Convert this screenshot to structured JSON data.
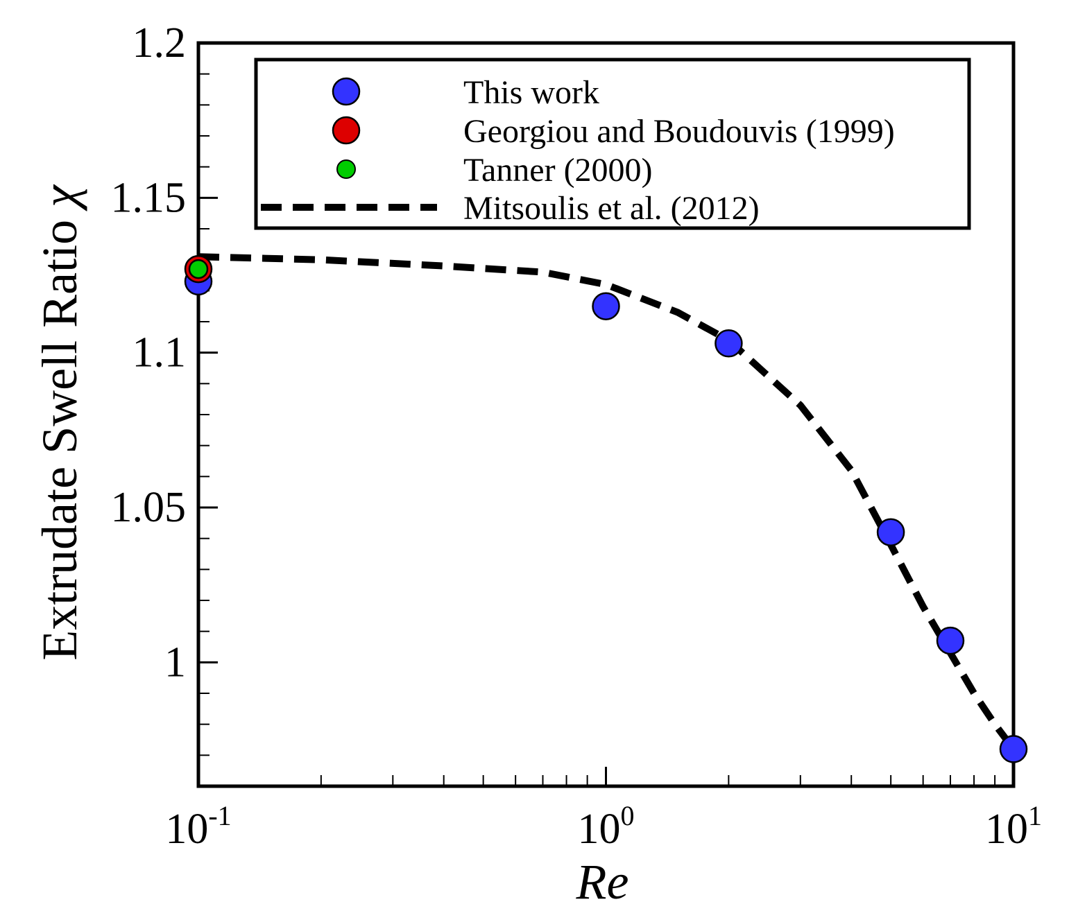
{
  "chart_data": {
    "type": "scatter",
    "title": "",
    "xlabel": "Re",
    "ylabel": "Extrudate Swell Ratio",
    "ylabel_symbol": "χ",
    "xscale": "log",
    "xlim": [
      0.1,
      10
    ],
    "ylim": [
      0.96,
      1.2
    ],
    "x_tick_labels": [
      {
        "value": 0.1,
        "base": "10",
        "exp": "-1"
      },
      {
        "value": 1,
        "base": "10",
        "exp": "0"
      },
      {
        "value": 10,
        "base": "10",
        "exp": "1"
      }
    ],
    "y_tick_labels": [
      {
        "value": 1.0,
        "label": "1"
      },
      {
        "value": 1.05,
        "label": "1.05"
      },
      {
        "value": 1.1,
        "label": "1.1"
      },
      {
        "value": 1.15,
        "label": "1.15"
      },
      {
        "value": 1.2,
        "label": "1.2"
      }
    ],
    "legend_position": "top-right",
    "series": [
      {
        "name": "This work",
        "kind": "marker",
        "color": "#3333ff",
        "x": [
          0.1,
          1,
          2,
          5,
          7,
          10
        ],
        "y": [
          1.123,
          1.115,
          1.103,
          1.042,
          1.007,
          0.972
        ]
      },
      {
        "name": "Georgiou and Boudouvis (1999)",
        "kind": "marker",
        "color": "#dd0000",
        "x": [
          0.1
        ],
        "y": [
          1.127
        ]
      },
      {
        "name": "Tanner (2000)",
        "kind": "marker-small",
        "color": "#00cc00",
        "x": [
          0.1
        ],
        "y": [
          1.127
        ]
      },
      {
        "name": "Mitsoulis et al. (2012)",
        "kind": "dashed-line",
        "color": "#000000",
        "x": [
          0.1,
          0.2,
          0.4,
          0.7,
          1.0,
          1.5,
          2.0,
          3.0,
          4.0,
          5.0,
          6.0,
          7.0,
          8.0,
          9.0,
          10.0
        ],
        "y": [
          1.131,
          1.13,
          1.128,
          1.126,
          1.122,
          1.113,
          1.104,
          1.083,
          1.062,
          1.038,
          1.018,
          1.003,
          0.99,
          0.98,
          0.972
        ]
      }
    ]
  }
}
